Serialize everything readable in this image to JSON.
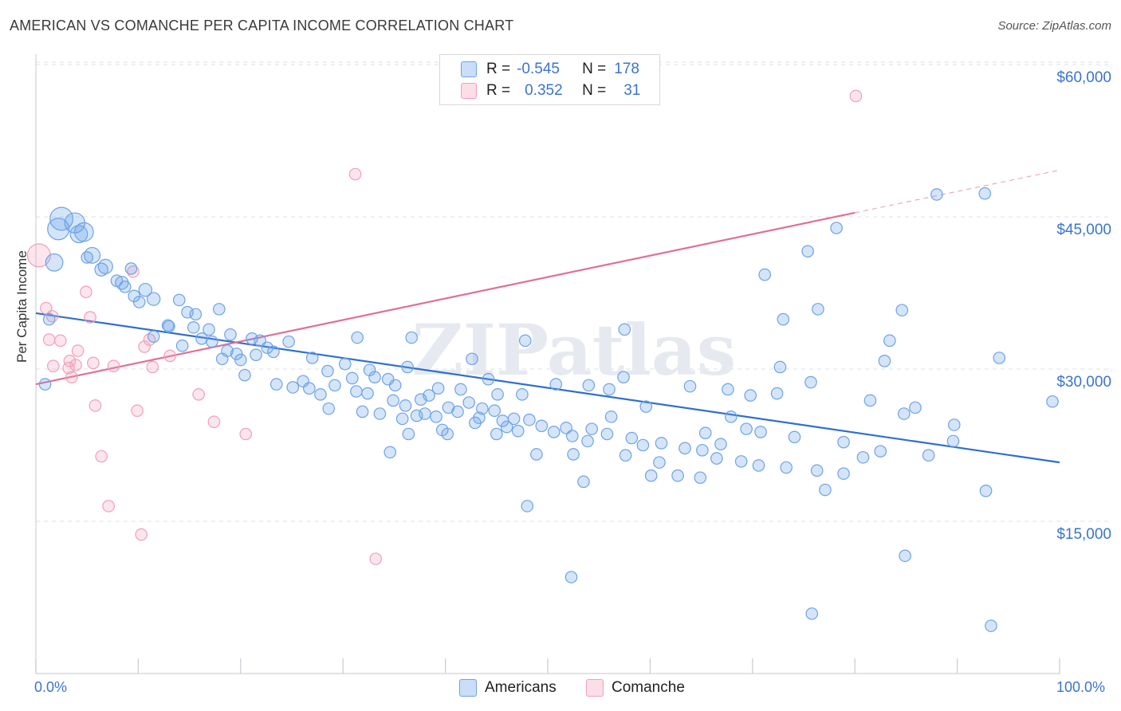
{
  "title": "AMERICAN VS COMANCHE PER CAPITA INCOME CORRELATION CHART",
  "source": "Source: ZipAtlas.com",
  "watermark": "ZIPatlas",
  "legend": {
    "row1": {
      "r_label": "R =",
      "r_value": "-0.545",
      "n_label": "N =",
      "n_value": "178"
    },
    "row2": {
      "r_label": "R =",
      "r_value": "0.352",
      "n_label": "N =",
      "n_value": "31"
    }
  },
  "colors": {
    "american_fill": "rgba(100,160,235,0.28)",
    "american_stroke": "#6fa2e6",
    "american_line": "#2f6fd0",
    "comanche_fill": "rgba(245,160,185,0.28)",
    "comanche_stroke": "#f0a0b8",
    "comanche_line": "#e07094",
    "accent": "#3a74d0"
  },
  "chart_data": {
    "type": "scatter",
    "title": "AMERICAN VS COMANCHE PER CAPITA INCOME CORRELATION CHART",
    "xlabel": "",
    "ylabel": "Per Capita Income",
    "xlim": [
      0,
      100
    ],
    "ylim": [
      0,
      62000
    ],
    "x_tick_labels": [
      "0.0%",
      "100.0%"
    ],
    "y_ticks": [
      15000,
      30000,
      45000,
      60000
    ],
    "y_tick_labels": [
      "$15,000",
      "$30,000",
      "$45,000",
      "$60,000"
    ],
    "grid": true,
    "legend_position": "bottom",
    "series": [
      {
        "name": "Americans",
        "r": -0.545,
        "n": 178,
        "trend": {
          "x": [
            0,
            100
          ],
          "y": [
            35500,
            20800
          ]
        },
        "points": [
          [
            2.5,
            44800,
            1.6
          ],
          [
            3.8,
            44400,
            1.4
          ],
          [
            2.2,
            43800,
            1.5
          ],
          [
            4.7,
            43500,
            1.3
          ],
          [
            4.2,
            43300,
            1.2
          ],
          [
            5.5,
            41200,
            1.1
          ],
          [
            1.8,
            40500,
            1.2
          ],
          [
            6.8,
            40100,
            1.0
          ],
          [
            6.4,
            39800,
            0.9
          ],
          [
            8.4,
            38500,
            0.9
          ],
          [
            8.7,
            38100,
            0.8
          ],
          [
            10.7,
            37800,
            0.9
          ],
          [
            9.6,
            37200,
            0.8
          ],
          [
            11.5,
            36900,
            0.9
          ],
          [
            14.0,
            36800,
            0.8
          ],
          [
            10.1,
            36600,
            0.8
          ],
          [
            17.9,
            35900,
            0.8
          ],
          [
            14.8,
            35600,
            0.8
          ],
          [
            15.6,
            35400,
            0.8
          ],
          [
            1.3,
            34900,
            0.8
          ],
          [
            12.9,
            34300,
            0.8
          ],
          [
            15.4,
            34100,
            0.8
          ],
          [
            16.9,
            33900,
            0.8
          ],
          [
            19.0,
            33400,
            0.8
          ],
          [
            11.5,
            33200,
            0.8
          ],
          [
            16.2,
            33000,
            0.8
          ],
          [
            21.1,
            33000,
            0.8
          ],
          [
            21.9,
            32800,
            0.8
          ],
          [
            17.2,
            32700,
            0.8
          ],
          [
            24.7,
            32700,
            0.8
          ],
          [
            14.3,
            32300,
            0.8
          ],
          [
            22.6,
            32100,
            0.8
          ],
          [
            18.7,
            31800,
            0.8
          ],
          [
            23.2,
            31700,
            0.8
          ],
          [
            19.6,
            31500,
            0.8
          ],
          [
            21.5,
            31400,
            0.8
          ],
          [
            27.0,
            31100,
            0.8
          ],
          [
            18.2,
            31000,
            0.8
          ],
          [
            20.0,
            30900,
            0.8
          ],
          [
            30.2,
            30500,
            0.8
          ],
          [
            36.3,
            30200,
            0.8
          ],
          [
            32.6,
            29900,
            0.8
          ],
          [
            28.5,
            29800,
            0.8
          ],
          [
            20.4,
            29400,
            0.8
          ],
          [
            33.1,
            29200,
            0.8
          ],
          [
            30.9,
            29100,
            0.8
          ],
          [
            34.4,
            29000,
            0.8
          ],
          [
            26.1,
            28800,
            0.8
          ],
          [
            0.9,
            28500,
            0.8
          ],
          [
            23.5,
            28500,
            0.8
          ],
          [
            29.2,
            28400,
            0.8
          ],
          [
            35.1,
            28400,
            0.8
          ],
          [
            25.1,
            28200,
            0.8
          ],
          [
            26.7,
            28100,
            0.8
          ],
          [
            39.3,
            28100,
            0.8
          ],
          [
            41.5,
            28000,
            0.8
          ],
          [
            31.3,
            27800,
            0.8
          ],
          [
            32.4,
            27600,
            0.8
          ],
          [
            27.8,
            27500,
            0.8
          ],
          [
            38.4,
            27400,
            0.8
          ],
          [
            37.6,
            27000,
            0.8
          ],
          [
            34.9,
            26900,
            0.8
          ],
          [
            42.3,
            26700,
            0.8
          ],
          [
            36.1,
            26400,
            0.8
          ],
          [
            40.3,
            26200,
            0.8
          ],
          [
            28.6,
            26100,
            0.8
          ],
          [
            43.6,
            26100,
            0.8
          ],
          [
            44.8,
            25900,
            0.8
          ],
          [
            41.2,
            25800,
            0.8
          ],
          [
            33.6,
            25600,
            0.8
          ],
          [
            37.2,
            25400,
            0.8
          ],
          [
            39.1,
            25300,
            0.8
          ],
          [
            43.3,
            25200,
            0.8
          ],
          [
            46.7,
            25100,
            0.8
          ],
          [
            48.2,
            25000,
            0.8
          ],
          [
            45.6,
            24900,
            0.8
          ],
          [
            42.9,
            24700,
            0.8
          ],
          [
            49.4,
            24400,
            0.8
          ],
          [
            46.0,
            24300,
            0.8
          ],
          [
            51.8,
            24200,
            0.8
          ],
          [
            54.3,
            24100,
            0.8
          ],
          [
            47.1,
            23900,
            0.8
          ],
          [
            50.6,
            23800,
            0.8
          ],
          [
            55.8,
            23600,
            0.8
          ],
          [
            45.0,
            23600,
            0.8
          ],
          [
            36.4,
            23600,
            0.8
          ],
          [
            52.4,
            23400,
            0.8
          ],
          [
            58.2,
            23200,
            0.8
          ],
          [
            53.9,
            22900,
            0.8
          ],
          [
            61.1,
            22700,
            0.8
          ],
          [
            59.3,
            22500,
            0.8
          ],
          [
            63.4,
            22200,
            0.8
          ],
          [
            65.1,
            22000,
            0.8
          ],
          [
            52.5,
            21600,
            0.8
          ],
          [
            57.6,
            21500,
            0.8
          ],
          [
            66.5,
            21200,
            0.8
          ],
          [
            68.9,
            20900,
            0.8
          ],
          [
            60.9,
            20800,
            0.8
          ],
          [
            70.6,
            20500,
            0.8
          ],
          [
            73.3,
            20300,
            0.8
          ],
          [
            76.3,
            20000,
            0.8
          ],
          [
            78.9,
            19700,
            0.8
          ],
          [
            62.7,
            19500,
            0.8
          ],
          [
            64.9,
            19300,
            0.8
          ],
          [
            77.1,
            18100,
            0.8
          ],
          [
            34.6,
            21800,
            0.8
          ],
          [
            47.5,
            27500,
            0.8
          ],
          [
            56.0,
            28000,
            0.8
          ],
          [
            63.9,
            28300,
            0.8
          ],
          [
            69.8,
            27400,
            0.8
          ],
          [
            67.6,
            28000,
            0.8
          ],
          [
            72.4,
            27600,
            0.8
          ],
          [
            75.7,
            28700,
            0.8
          ],
          [
            81.5,
            26900,
            0.8
          ],
          [
            84.8,
            25600,
            0.8
          ],
          [
            89.7,
            24500,
            0.8
          ],
          [
            85.9,
            26200,
            0.8
          ],
          [
            67.9,
            25300,
            0.8
          ],
          [
            65.4,
            23700,
            0.8
          ],
          [
            69.4,
            24100,
            0.8
          ],
          [
            56.2,
            25300,
            0.8
          ],
          [
            59.6,
            26300,
            0.8
          ],
          [
            57.4,
            29200,
            0.8
          ],
          [
            50.8,
            28500,
            0.8
          ],
          [
            72.7,
            30200,
            0.8
          ],
          [
            82.9,
            30800,
            0.8
          ],
          [
            83.4,
            32800,
            0.8
          ],
          [
            94.1,
            31100,
            0.8
          ],
          [
            84.6,
            35800,
            0.8
          ],
          [
            76.4,
            35900,
            0.8
          ],
          [
            73.0,
            34900,
            0.8
          ],
          [
            57.5,
            33900,
            0.8
          ],
          [
            71.2,
            39300,
            0.8
          ],
          [
            75.4,
            41600,
            0.8
          ],
          [
            78.2,
            43900,
            0.8
          ],
          [
            88.0,
            47200,
            0.8
          ],
          [
            92.7,
            47300,
            0.8
          ],
          [
            99.3,
            26800,
            0.8
          ],
          [
            89.6,
            22900,
            0.8
          ],
          [
            92.8,
            18000,
            0.8
          ],
          [
            84.9,
            11600,
            0.8
          ],
          [
            75.8,
            5900,
            0.8
          ],
          [
            93.3,
            4700,
            0.8
          ],
          [
            48.0,
            16500,
            0.8
          ],
          [
            52.3,
            9500,
            0.8
          ],
          [
            39.7,
            24000,
            0.8
          ],
          [
            40.2,
            23600,
            0.8
          ],
          [
            44.2,
            29000,
            0.8
          ],
          [
            45.1,
            27500,
            0.8
          ],
          [
            54.0,
            28400,
            0.8
          ],
          [
            31.9,
            25800,
            0.8
          ],
          [
            38.0,
            25600,
            0.8
          ],
          [
            35.8,
            25100,
            0.8
          ],
          [
            48.9,
            21600,
            0.8
          ],
          [
            53.5,
            18900,
            0.8
          ],
          [
            60.1,
            19500,
            0.8
          ],
          [
            66.9,
            22600,
            0.8
          ],
          [
            70.8,
            23800,
            0.8
          ],
          [
            74.1,
            23300,
            0.8
          ],
          [
            78.9,
            22800,
            0.8
          ],
          [
            80.8,
            21300,
            0.8
          ],
          [
            87.2,
            21500,
            0.8
          ],
          [
            82.5,
            21900,
            0.8
          ],
          [
            31.4,
            33100,
            0.8
          ],
          [
            36.7,
            33100,
            0.8
          ],
          [
            42.6,
            31000,
            0.8
          ],
          [
            47.8,
            32800,
            0.8
          ],
          [
            13.0,
            34200,
            0.8
          ],
          [
            9.3,
            39900,
            0.8
          ],
          [
            7.9,
            38700,
            0.8
          ],
          [
            5.0,
            41000,
            0.8
          ]
        ]
      },
      {
        "name": "Comanche",
        "r": 0.352,
        "n": 31,
        "trend": {
          "x": [
            0,
            80
          ],
          "y": [
            28500,
            45400
          ]
        },
        "trend_dashed": {
          "x": [
            80,
            100
          ],
          "y": [
            45400,
            49600
          ]
        },
        "points": [
          [
            0.3,
            41200,
            1.6
          ],
          [
            80.1,
            56900,
            0.8
          ],
          [
            31.2,
            49200,
            0.8
          ],
          [
            9.5,
            39600,
            0.8
          ],
          [
            4.9,
            37600,
            0.8
          ],
          [
            1.0,
            36000,
            0.8
          ],
          [
            1.6,
            35200,
            0.8
          ],
          [
            5.3,
            35100,
            0.8
          ],
          [
            11.1,
            32900,
            0.8
          ],
          [
            2.4,
            32800,
            0.8
          ],
          [
            10.6,
            32200,
            0.8
          ],
          [
            1.3,
            32900,
            0.8
          ],
          [
            4.1,
            31800,
            0.8
          ],
          [
            13.1,
            31300,
            0.8
          ],
          [
            3.3,
            30800,
            0.8
          ],
          [
            5.6,
            30600,
            0.8
          ],
          [
            3.9,
            30400,
            0.8
          ],
          [
            1.7,
            30300,
            0.8
          ],
          [
            7.6,
            30300,
            0.8
          ],
          [
            11.4,
            30200,
            0.8
          ],
          [
            3.2,
            30100,
            0.8
          ],
          [
            3.5,
            29200,
            0.8
          ],
          [
            15.9,
            27500,
            0.8
          ],
          [
            5.8,
            26400,
            0.8
          ],
          [
            9.9,
            25900,
            0.8
          ],
          [
            17.4,
            24800,
            0.8
          ],
          [
            20.5,
            23600,
            0.8
          ],
          [
            6.4,
            21400,
            0.8
          ],
          [
            7.1,
            16500,
            0.8
          ],
          [
            10.3,
            13700,
            0.8
          ],
          [
            33.2,
            11300,
            0.8
          ]
        ]
      }
    ]
  },
  "bottom_legend": {
    "americans": "Americans",
    "comanche": "Comanche"
  }
}
